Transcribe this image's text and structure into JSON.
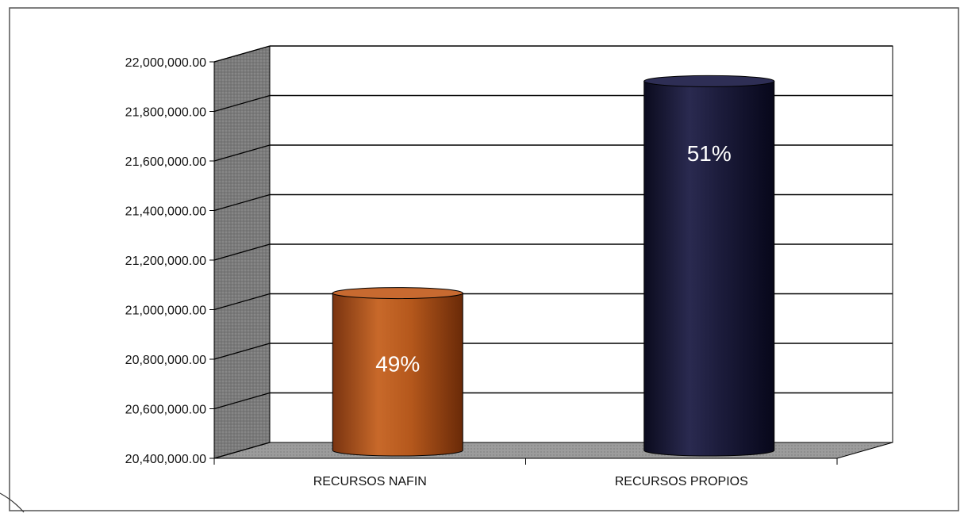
{
  "chart_data": {
    "type": "bar",
    "categories": [
      "RECURSOS NAFIN",
      "RECURSOS PROPIOS"
    ],
    "values": [
      21035000,
      21890000
    ],
    "data_labels": [
      "49%",
      "51%"
    ],
    "y_tick_labels": [
      "20,400,000.00",
      "20,600,000.00",
      "20,800,000.00",
      "21,000,000.00",
      "21,200,000.00",
      "21,400,000.00",
      "21,600,000.00",
      "21,800,000.00",
      "22,000,000.00"
    ],
    "ylim": [
      20400000,
      22000000
    ],
    "title": "",
    "xlabel": "",
    "ylabel": "",
    "grid": true,
    "style": "3d-cylinder",
    "colors": {
      "bar_nafin": "#b5581c",
      "bar_propios": "#1b1b3a",
      "wall": "#ffffff",
      "side_wall": "#808080",
      "floor": "#9a9a9a",
      "gridline": "#000000"
    }
  }
}
